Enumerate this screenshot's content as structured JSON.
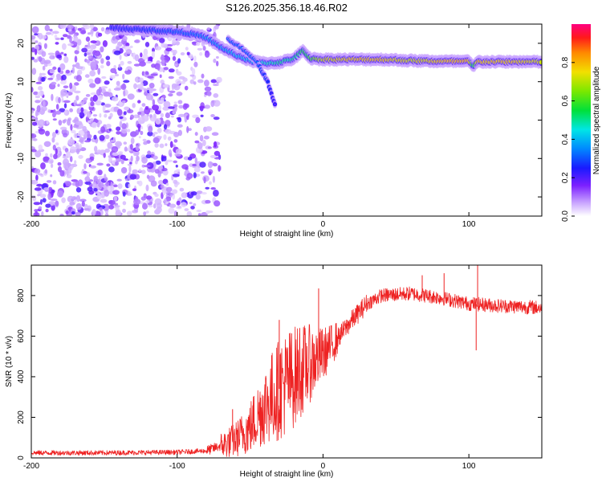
{
  "figure_title": "S126.2025.356.18.46.R02",
  "chart_data": [
    {
      "type": "heatmap",
      "name": "spectrogram",
      "xlabel": "Height of straight line (km)",
      "ylabel": "Frequency (Hz)",
      "xlim": [
        -200,
        150
      ],
      "ylim": [
        -25,
        25
      ],
      "xticks": [
        -200,
        -100,
        0,
        100
      ],
      "xtick_labels": [
        "-200",
        "-100",
        "0",
        "100"
      ],
      "yticks": [
        -20,
        -10,
        0,
        10,
        20
      ],
      "ytick_labels": [
        "-20",
        "-10",
        "0",
        "10",
        "20"
      ],
      "colorbar": {
        "label": "Normalized spectral amplitude",
        "range": [
          0,
          1
        ],
        "ticks": [
          0.0,
          0.2,
          0.4,
          0.6,
          0.8
        ],
        "tick_labels": [
          "0.0",
          "0.2",
          "0.4",
          "0.6",
          "0.8"
        ]
      },
      "colors": {
        "low": "#e8d8ff",
        "mid": "#7a2cff",
        "high": "#ff1f3a"
      },
      "noise_region_x": [
        -200,
        -80
      ],
      "ridge": [
        {
          "x": -145,
          "freq": 24.0,
          "amp": 0.22
        },
        {
          "x": -120,
          "freq": 23.5,
          "amp": 0.25
        },
        {
          "x": -100,
          "freq": 23.0,
          "amp": 0.3
        },
        {
          "x": -90,
          "freq": 22.5,
          "amp": 0.3
        },
        {
          "x": -80,
          "freq": 21.5,
          "amp": 0.35
        },
        {
          "x": -70,
          "freq": 19.0,
          "amp": 0.35
        },
        {
          "x": -60,
          "freq": 17.0,
          "amp": 0.4
        },
        {
          "x": -50,
          "freq": 15.5,
          "amp": 0.4
        },
        {
          "x": -40,
          "freq": 14.8,
          "amp": 0.45
        },
        {
          "x": -30,
          "freq": 15.0,
          "amp": 0.5
        },
        {
          "x": -20,
          "freq": 16.0,
          "amp": 0.5
        },
        {
          "x": -14,
          "freq": 18.0,
          "amp": 0.55
        },
        {
          "x": -8,
          "freq": 16.0,
          "amp": 0.6
        },
        {
          "x": 0,
          "freq": 15.8,
          "amp": 0.75
        },
        {
          "x": 20,
          "freq": 15.8,
          "amp": 0.8
        },
        {
          "x": 40,
          "freq": 15.8,
          "amp": 0.8
        },
        {
          "x": 60,
          "freq": 15.5,
          "amp": 0.75
        },
        {
          "x": 80,
          "freq": 15.3,
          "amp": 0.8
        },
        {
          "x": 100,
          "freq": 15.3,
          "amp": 0.85
        },
        {
          "x": 103,
          "freq": 14.0,
          "amp": 0.5
        },
        {
          "x": 106,
          "freq": 15.2,
          "amp": 0.8
        },
        {
          "x": 130,
          "freq": 15.2,
          "amp": 0.8
        },
        {
          "x": 150,
          "freq": 15.2,
          "amp": 0.75
        }
      ],
      "branch": [
        {
          "x": -65,
          "freq": 21.0,
          "amp": 0.3
        },
        {
          "x": -55,
          "freq": 18.5,
          "amp": 0.3
        },
        {
          "x": -45,
          "freq": 15.0,
          "amp": 0.3
        },
        {
          "x": -38,
          "freq": 10.0,
          "amp": 0.25
        },
        {
          "x": -33,
          "freq": 4.0,
          "amp": 0.2
        }
      ]
    },
    {
      "type": "line",
      "name": "snr",
      "xlabel": "Height of straight line (km)",
      "ylabel": "SNR (10 * v/v)",
      "xlim": [
        -200,
        150
      ],
      "ylim": [
        0,
        950
      ],
      "xticks": [
        -200,
        -100,
        0,
        100
      ],
      "xtick_labels": [
        "-200",
        "-100",
        "0",
        "100"
      ],
      "yticks": [
        0,
        200,
        400,
        600,
        800
      ],
      "ytick_labels": [
        "0",
        "200",
        "400",
        "600",
        "800"
      ],
      "color": "#ee2222",
      "trend": [
        {
          "x": -200,
          "y": 25
        },
        {
          "x": -150,
          "y": 25
        },
        {
          "x": -100,
          "y": 28
        },
        {
          "x": -80,
          "y": 35
        },
        {
          "x": -70,
          "y": 60
        },
        {
          "x": -60,
          "y": 90
        },
        {
          "x": -50,
          "y": 150
        },
        {
          "x": -40,
          "y": 260
        },
        {
          "x": -30,
          "y": 340
        },
        {
          "x": -20,
          "y": 400
        },
        {
          "x": -10,
          "y": 460
        },
        {
          "x": 0,
          "y": 510
        },
        {
          "x": 10,
          "y": 590
        },
        {
          "x": 20,
          "y": 680
        },
        {
          "x": 30,
          "y": 760
        },
        {
          "x": 40,
          "y": 800
        },
        {
          "x": 60,
          "y": 810
        },
        {
          "x": 80,
          "y": 790
        },
        {
          "x": 100,
          "y": 760
        },
        {
          "x": 120,
          "y": 750
        },
        {
          "x": 150,
          "y": 740
        }
      ],
      "spikes": [
        {
          "x": -62,
          "y": 240
        },
        {
          "x": -48,
          "y": 260
        },
        {
          "x": -30,
          "y": 680
        },
        {
          "x": -16,
          "y": 640
        },
        {
          "x": -3,
          "y": 835
        },
        {
          "x": 68,
          "y": 900
        },
        {
          "x": 83,
          "y": 910
        },
        {
          "x": 105,
          "y": 530
        },
        {
          "x": 106,
          "y": 960
        }
      ]
    }
  ]
}
